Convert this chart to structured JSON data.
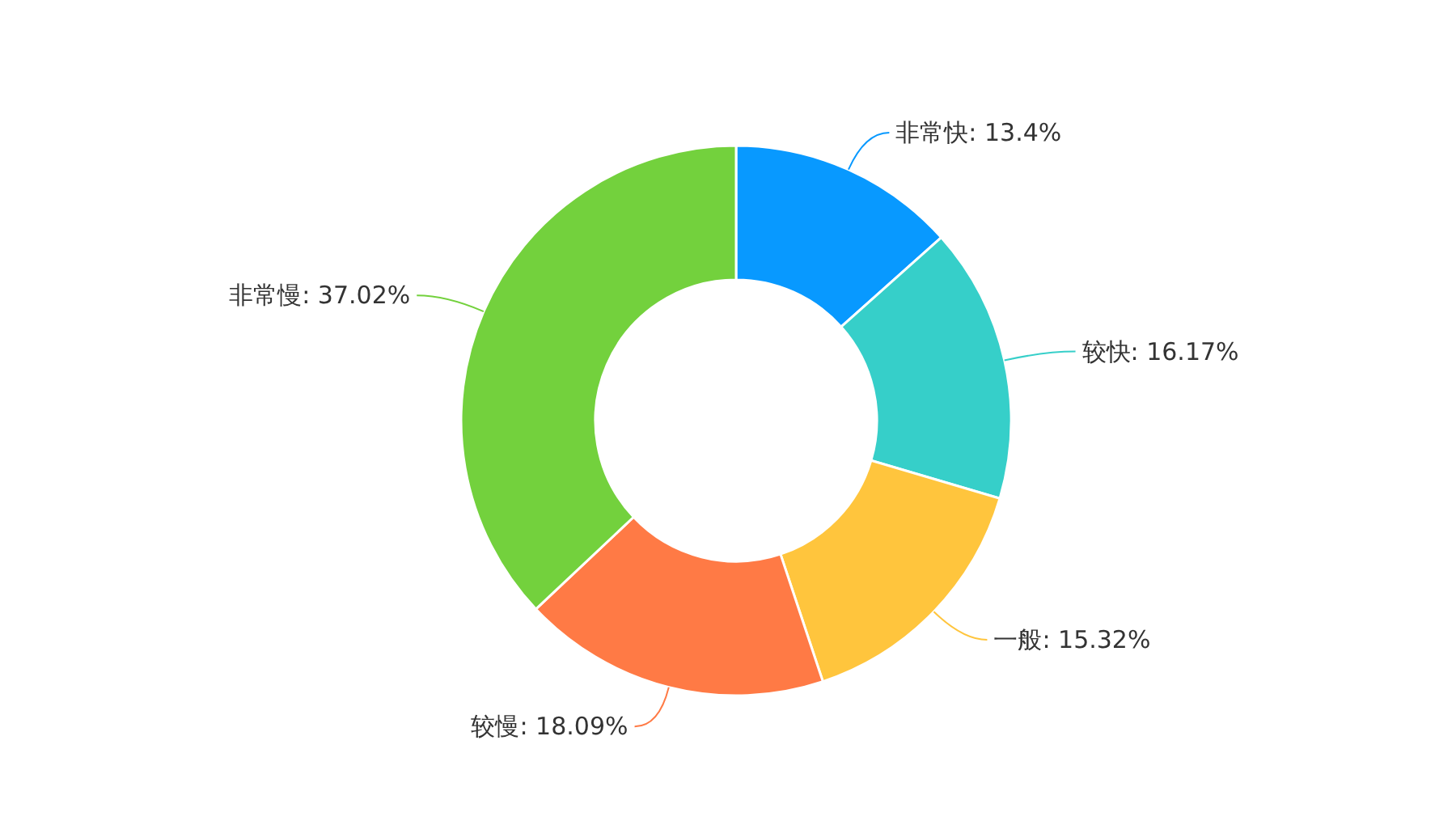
{
  "chart_data": {
    "type": "donut",
    "categories": [
      "非常快",
      "较快",
      "一般",
      "较慢",
      "非常慢"
    ],
    "values": [
      13.4,
      16.17,
      15.32,
      18.09,
      37.02
    ],
    "colors": [
      "#0899ff",
      "#36cfc9",
      "#ffc53d",
      "#ff7a45",
      "#73d13d"
    ],
    "value_labels": [
      ": 13.4%",
      ": 16.17%",
      ": 15.32%",
      ": 18.09%",
      ": 37.02%"
    ],
    "legend": false
  }
}
